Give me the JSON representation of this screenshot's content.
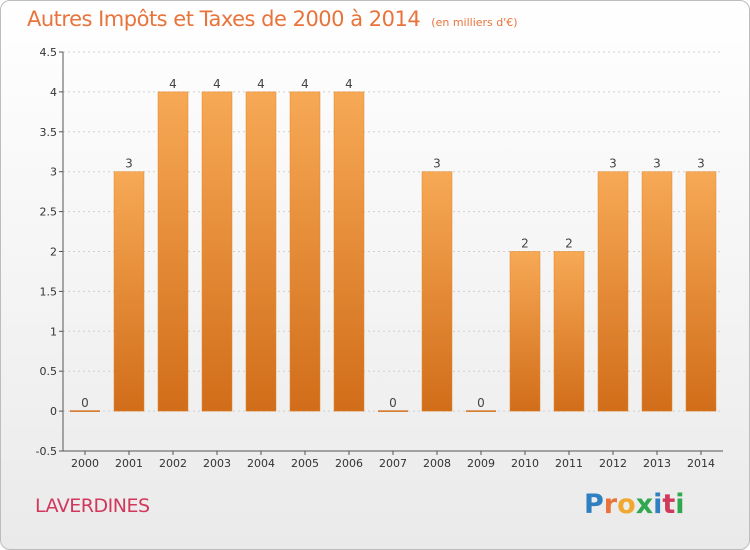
{
  "header": {
    "title": "Autres Impôts et Taxes de 2000 à 2014",
    "subtitle": "(en milliers d'€)"
  },
  "footer": {
    "place": "LAVERDINES",
    "brand_letters": [
      "P",
      "r",
      "o",
      "x",
      "i",
      "t",
      "i"
    ],
    "brand_colors": [
      "#2f7fc1",
      "#e8743b",
      "#f0a830",
      "#2fa84f",
      "#2f7fc1",
      "#d1385c",
      "#2fa84f"
    ]
  },
  "chart_data": {
    "type": "bar",
    "categories": [
      "2000",
      "2001",
      "2002",
      "2003",
      "2004",
      "2005",
      "2006",
      "2007",
      "2008",
      "2009",
      "2010",
      "2011",
      "2012",
      "2013",
      "2014"
    ],
    "values": [
      0,
      3,
      4,
      4,
      4,
      4,
      4,
      0,
      3,
      0,
      2,
      2,
      3,
      3,
      3
    ],
    "data_labels": [
      "0",
      "3",
      "4",
      "4",
      "4",
      "4",
      "4",
      "0",
      "3",
      "0",
      "2",
      "2",
      "3",
      "3",
      "3"
    ],
    "yticks": [
      -0.5,
      0,
      0.5,
      1,
      1.5,
      2,
      2.5,
      3,
      3.5,
      4,
      4.5
    ],
    "ytick_labels": [
      "-0.5",
      "0",
      "0.5",
      "1",
      "1.5",
      "2",
      "2.5",
      "3",
      "3.5",
      "4",
      "4.5"
    ],
    "ylim": [
      -0.5,
      4.5
    ],
    "grid": "horizontal-dashed",
    "bar_color": "#f2963f",
    "bar_color_light": "#f7a955",
    "bar_color_dark": "#d16d1a"
  }
}
